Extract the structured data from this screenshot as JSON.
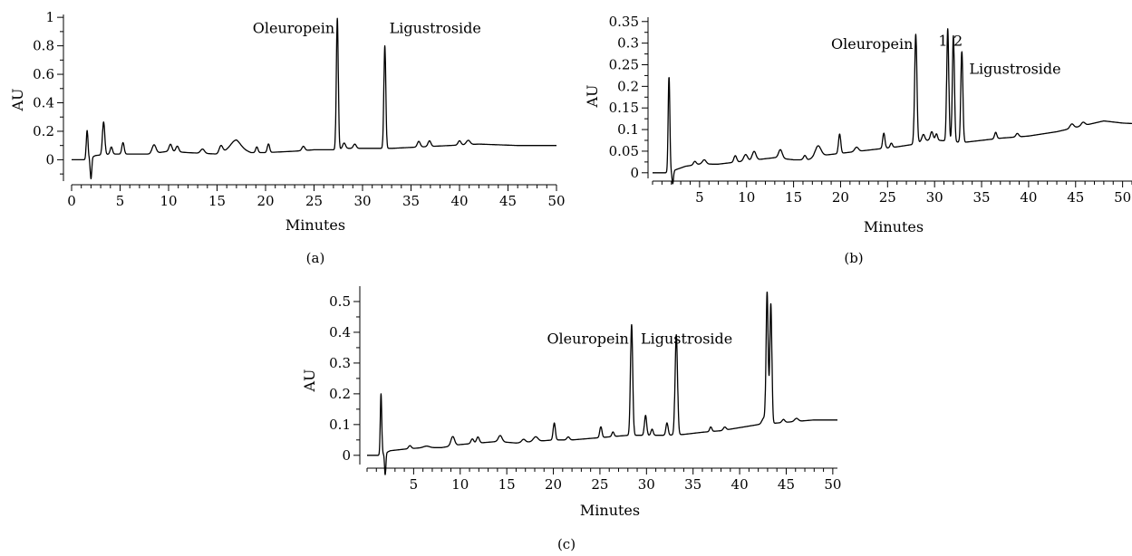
{
  "chart_data": [
    {
      "type": "line",
      "panel_label": "(a)",
      "xlabel": "Minutes",
      "ylabel": "AU",
      "xlim": [
        0,
        50
      ],
      "ylim": [
        -0.15,
        1.02
      ],
      "x_ticks": [
        0,
        5,
        10,
        15,
        20,
        25,
        30,
        35,
        40,
        45,
        50
      ],
      "y_ticks": [
        0,
        0.2,
        0.4,
        0.6,
        0.8,
        1
      ],
      "y_tick_labels": [
        "0",
        "0.2",
        "0.4",
        "0.6",
        "0.8",
        "1"
      ],
      "annotations": [
        {
          "text": "Oleuropein",
          "x": 27.4,
          "y": 0.99,
          "align": "end"
        },
        {
          "text": "Ligustroside",
          "x": 32.3,
          "y": 0.99,
          "align": "start"
        }
      ],
      "baseline": [
        [
          0,
          0
        ],
        [
          1.4,
          0
        ],
        [
          2.5,
          0.03
        ],
        [
          4,
          0.04
        ],
        [
          6,
          0.04
        ],
        [
          8,
          0.04
        ],
        [
          10,
          0.06
        ],
        [
          12,
          0.05
        ],
        [
          15,
          0.04
        ],
        [
          17,
          0.09
        ],
        [
          18.5,
          0.05
        ],
        [
          20,
          0.05
        ],
        [
          23,
          0.06
        ],
        [
          25,
          0.07
        ],
        [
          27,
          0.07
        ],
        [
          28.5,
          0.08
        ],
        [
          30,
          0.08
        ],
        [
          31.5,
          0.08
        ],
        [
          33,
          0.08
        ],
        [
          36,
          0.09
        ],
        [
          39,
          0.1
        ],
        [
          42,
          0.11
        ],
        [
          46,
          0.1
        ],
        [
          50,
          0.1
        ]
      ],
      "peaks": [
        {
          "x": 1.6,
          "h": 0.2,
          "w": 0.09
        },
        {
          "x": 2.0,
          "h": -0.15,
          "w": 0.08
        },
        {
          "x": 3.3,
          "h": 0.23,
          "w": 0.12
        },
        {
          "x": 4.1,
          "h": 0.05,
          "w": 0.12
        },
        {
          "x": 5.3,
          "h": 0.08,
          "w": 0.12
        },
        {
          "x": 8.5,
          "h": 0.06,
          "w": 0.2
        },
        {
          "x": 10.2,
          "h": 0.05,
          "w": 0.15
        },
        {
          "x": 10.9,
          "h": 0.04,
          "w": 0.15
        },
        {
          "x": 13.5,
          "h": 0.03,
          "w": 0.2
        },
        {
          "x": 15.4,
          "h": 0.05,
          "w": 0.18
        },
        {
          "x": 16.9,
          "h": 0.05,
          "w": 0.5
        },
        {
          "x": 19.1,
          "h": 0.04,
          "w": 0.12
        },
        {
          "x": 20.3,
          "h": 0.06,
          "w": 0.12
        },
        {
          "x": 23.9,
          "h": 0.03,
          "w": 0.15
        },
        {
          "x": 27.4,
          "h": 0.92,
          "w": 0.1
        },
        {
          "x": 28.1,
          "h": 0.04,
          "w": 0.15
        },
        {
          "x": 29.2,
          "h": 0.03,
          "w": 0.15
        },
        {
          "x": 32.3,
          "h": 0.72,
          "w": 0.1
        },
        {
          "x": 35.8,
          "h": 0.04,
          "w": 0.15
        },
        {
          "x": 36.9,
          "h": 0.04,
          "w": 0.15
        },
        {
          "x": 40.0,
          "h": 0.03,
          "w": 0.15
        },
        {
          "x": 40.9,
          "h": 0.03,
          "w": 0.2
        }
      ]
    },
    {
      "type": "line",
      "panel_label": "(b)",
      "xlabel": "Minutes",
      "ylabel": "AU",
      "xlim": [
        0,
        51
      ],
      "ylim": [
        -0.013,
        0.36
      ],
      "x_ticks": [
        5,
        10,
        15,
        20,
        25,
        30,
        35,
        40,
        45,
        50
      ],
      "y_ticks": [
        0,
        0.05,
        0.1,
        0.15,
        0.2,
        0.25,
        0.3,
        0.35
      ],
      "y_tick_labels": [
        "0",
        "0.05",
        "0.1",
        "0.15",
        "0.2",
        "0.25",
        "0.3",
        "0.35"
      ],
      "annotations": [
        {
          "text": "Oleuropein",
          "x": 28.0,
          "y": 0.32,
          "align": "end"
        },
        {
          "text": "1",
          "x": 30.9,
          "y": 0.328,
          "align": "middle"
        },
        {
          "text": "2",
          "x": 32.5,
          "y": 0.328,
          "align": "middle"
        },
        {
          "text": "Ligustroside",
          "x": 33.2,
          "y": 0.263,
          "align": "start"
        }
      ],
      "baseline": [
        [
          0,
          0
        ],
        [
          1.6,
          0
        ],
        [
          2.2,
          0.005
        ],
        [
          3.5,
          0.015
        ],
        [
          5,
          0.02
        ],
        [
          7,
          0.02
        ],
        [
          9,
          0.025
        ],
        [
          11,
          0.03
        ],
        [
          13,
          0.035
        ],
        [
          15,
          0.03
        ],
        [
          16.5,
          0.03
        ],
        [
          18,
          0.04
        ],
        [
          20,
          0.045
        ],
        [
          22,
          0.05
        ],
        [
          24,
          0.055
        ],
        [
          26,
          0.06
        ],
        [
          27.5,
          0.065
        ],
        [
          29,
          0.075
        ],
        [
          30.5,
          0.075
        ],
        [
          33,
          0.07
        ],
        [
          35,
          0.075
        ],
        [
          37,
          0.08
        ],
        [
          40,
          0.085
        ],
        [
          43,
          0.095
        ],
        [
          46,
          0.11
        ],
        [
          48,
          0.12
        ],
        [
          50,
          0.115
        ],
        [
          51,
          0.114
        ]
      ],
      "peaks": [
        {
          "x": 1.75,
          "h": 0.22,
          "w": 0.09
        },
        {
          "x": 2.15,
          "h": -0.03,
          "w": 0.08
        },
        {
          "x": 4.5,
          "h": 0.008,
          "w": 0.15
        },
        {
          "x": 5.5,
          "h": 0.01,
          "w": 0.2
        },
        {
          "x": 8.8,
          "h": 0.015,
          "w": 0.15
        },
        {
          "x": 9.9,
          "h": 0.015,
          "w": 0.2
        },
        {
          "x": 10.8,
          "h": 0.02,
          "w": 0.2
        },
        {
          "x": 13.6,
          "h": 0.02,
          "w": 0.2
        },
        {
          "x": 16.2,
          "h": 0.01,
          "w": 0.15
        },
        {
          "x": 17.6,
          "h": 0.025,
          "w": 0.3
        },
        {
          "x": 19.9,
          "h": 0.045,
          "w": 0.12
        },
        {
          "x": 21.7,
          "h": 0.01,
          "w": 0.2
        },
        {
          "x": 24.6,
          "h": 0.035,
          "w": 0.12
        },
        {
          "x": 25.4,
          "h": 0.01,
          "w": 0.12
        },
        {
          "x": 28.0,
          "h": 0.252,
          "w": 0.12
        },
        {
          "x": 28.8,
          "h": 0.015,
          "w": 0.15
        },
        {
          "x": 29.7,
          "h": 0.02,
          "w": 0.15
        },
        {
          "x": 30.2,
          "h": 0.015,
          "w": 0.12
        },
        {
          "x": 31.4,
          "h": 0.26,
          "w": 0.11
        },
        {
          "x": 32.0,
          "h": 0.245,
          "w": 0.11
        },
        {
          "x": 32.9,
          "h": 0.21,
          "w": 0.11
        },
        {
          "x": 36.5,
          "h": 0.015,
          "w": 0.12
        },
        {
          "x": 38.8,
          "h": 0.008,
          "w": 0.15
        },
        {
          "x": 44.6,
          "h": 0.01,
          "w": 0.2
        },
        {
          "x": 45.8,
          "h": 0.008,
          "w": 0.2
        }
      ]
    },
    {
      "type": "line",
      "panel_label": "(c)",
      "xlabel": "Minutes",
      "ylabel": "AU",
      "xlim": [
        0,
        50.5
      ],
      "ylim": [
        -0.03,
        0.55
      ],
      "x_ticks": [
        5,
        10,
        15,
        20,
        25,
        30,
        35,
        40,
        45,
        50
      ],
      "y_ticks": [
        0,
        0.1,
        0.2,
        0.3,
        0.4,
        0.5
      ],
      "y_tick_labels": [
        "0",
        "0.1",
        "0.2",
        "0.3",
        "0.4",
        "0.5"
      ],
      "annotations": [
        {
          "text": "Oleuropein",
          "x": 28.4,
          "y": 0.41,
          "align": "end"
        },
        {
          "text": "Ligustroside",
          "x": 28.9,
          "y": 0.41,
          "align": "start"
        }
      ],
      "baseline": [
        [
          0,
          0
        ],
        [
          1.5,
          0
        ],
        [
          2.5,
          0.015
        ],
        [
          4,
          0.02
        ],
        [
          6,
          0.025
        ],
        [
          8,
          0.025
        ],
        [
          10,
          0.035
        ],
        [
          12,
          0.04
        ],
        [
          14,
          0.045
        ],
        [
          16,
          0.04
        ],
        [
          18,
          0.045
        ],
        [
          20,
          0.05
        ],
        [
          22,
          0.05
        ],
        [
          24,
          0.055
        ],
        [
          26,
          0.06
        ],
        [
          28,
          0.065
        ],
        [
          30,
          0.065
        ],
        [
          32,
          0.065
        ],
        [
          34,
          0.068
        ],
        [
          36,
          0.075
        ],
        [
          38,
          0.08
        ],
        [
          40,
          0.09
        ],
        [
          42,
          0.1
        ],
        [
          44,
          0.105
        ],
        [
          46,
          0.11
        ],
        [
          48,
          0.115
        ],
        [
          50.5,
          0.115
        ]
      ],
      "peaks": [
        {
          "x": 1.5,
          "h": 0.2,
          "w": 0.08
        },
        {
          "x": 1.95,
          "h": -0.07,
          "w": 0.07
        },
        {
          "x": 4.6,
          "h": 0.01,
          "w": 0.15
        },
        {
          "x": 6.4,
          "h": 0.005,
          "w": 0.3
        },
        {
          "x": 9.2,
          "h": 0.03,
          "w": 0.2
        },
        {
          "x": 11.3,
          "h": 0.015,
          "w": 0.15
        },
        {
          "x": 11.9,
          "h": 0.02,
          "w": 0.15
        },
        {
          "x": 14.3,
          "h": 0.02,
          "w": 0.2
        },
        {
          "x": 16.8,
          "h": 0.01,
          "w": 0.2
        },
        {
          "x": 18.1,
          "h": 0.015,
          "w": 0.25
        },
        {
          "x": 20.1,
          "h": 0.055,
          "w": 0.12
        },
        {
          "x": 21.6,
          "h": 0.01,
          "w": 0.15
        },
        {
          "x": 25.1,
          "h": 0.035,
          "w": 0.12
        },
        {
          "x": 26.4,
          "h": 0.015,
          "w": 0.12
        },
        {
          "x": 28.4,
          "h": 0.36,
          "w": 0.12
        },
        {
          "x": 29.9,
          "h": 0.065,
          "w": 0.12
        },
        {
          "x": 30.6,
          "h": 0.02,
          "w": 0.12
        },
        {
          "x": 32.2,
          "h": 0.04,
          "w": 0.12
        },
        {
          "x": 33.2,
          "h": 0.325,
          "w": 0.13
        },
        {
          "x": 36.9,
          "h": 0.015,
          "w": 0.12
        },
        {
          "x": 38.4,
          "h": 0.01,
          "w": 0.15
        },
        {
          "x": 42.6,
          "h": 0.02,
          "w": 0.2
        },
        {
          "x": 42.95,
          "h": 0.425,
          "w": 0.11
        },
        {
          "x": 43.35,
          "h": 0.39,
          "w": 0.11
        },
        {
          "x": 44.7,
          "h": 0.01,
          "w": 0.15
        },
        {
          "x": 46.1,
          "h": 0.01,
          "w": 0.2
        }
      ]
    }
  ]
}
